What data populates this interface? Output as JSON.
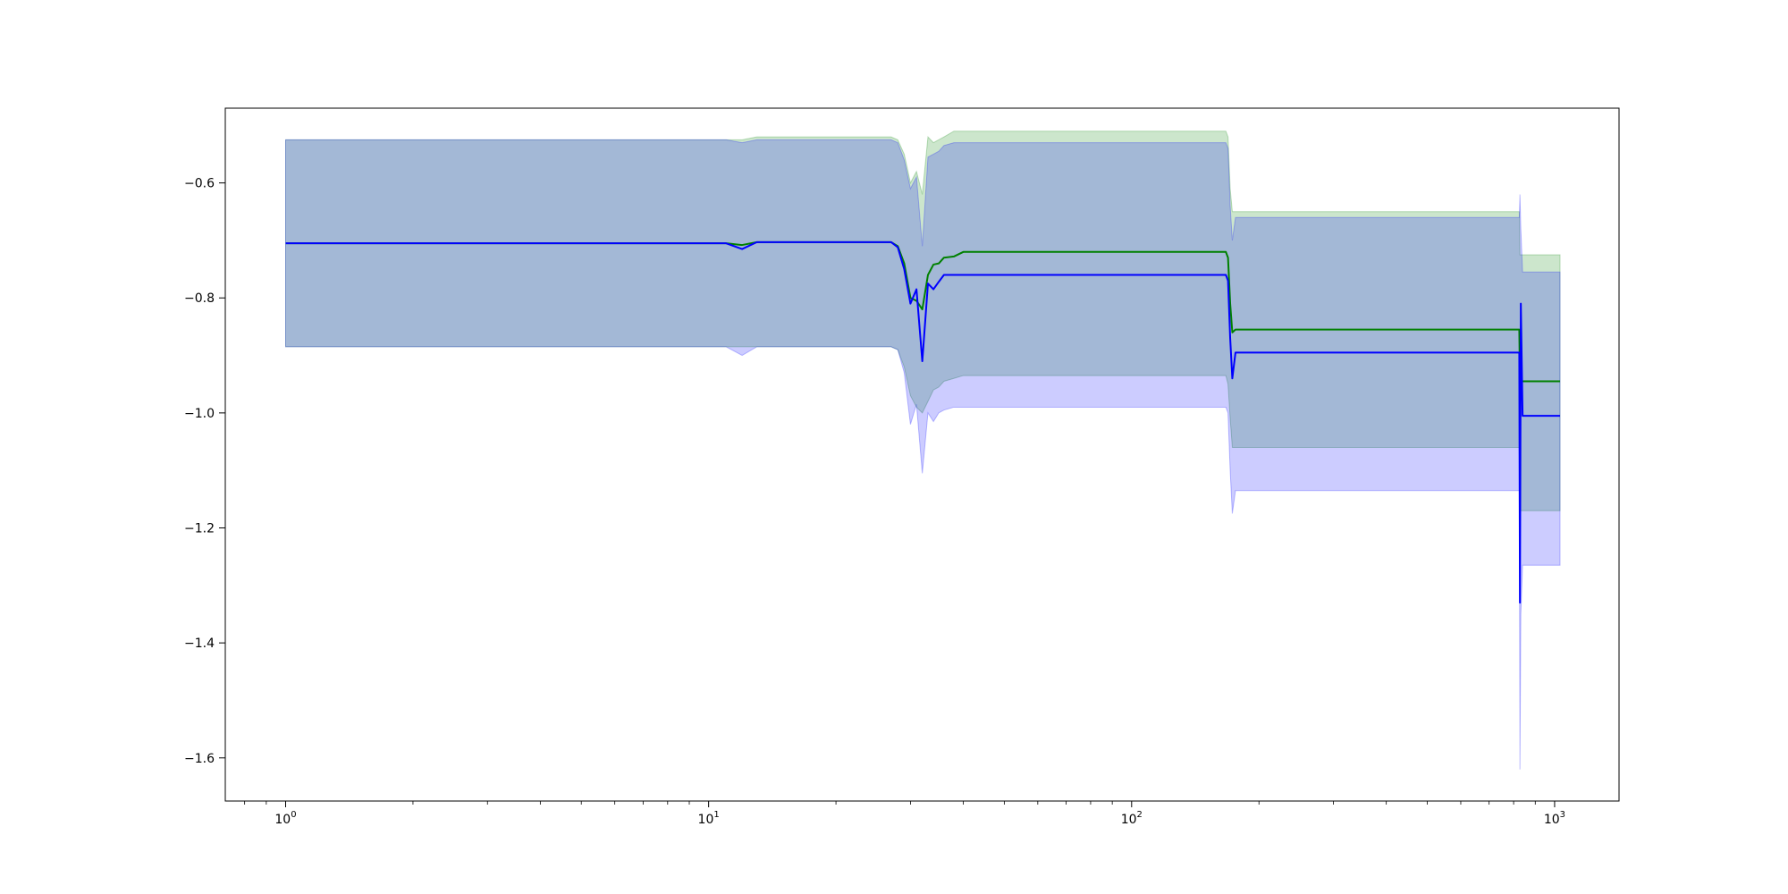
{
  "chart_data": {
    "type": "line",
    "title": "",
    "xlabel": "",
    "ylabel": "",
    "xscale": "log",
    "xlim": [
      0.72,
      1420
    ],
    "ylim": [
      -1.675,
      -0.47
    ],
    "grid": false,
    "x_ticks": [
      {
        "value": 1,
        "base": "10",
        "exp": "0"
      },
      {
        "value": 10,
        "base": "10",
        "exp": "1"
      },
      {
        "value": 100,
        "base": "10",
        "exp": "2"
      },
      {
        "value": 1000,
        "base": "10",
        "exp": "3"
      }
    ],
    "y_ticks": [
      {
        "value": -1.6,
        "label": "−1.6"
      },
      {
        "value": -1.4,
        "label": "−1.4"
      },
      {
        "value": -1.2,
        "label": "−1.2"
      },
      {
        "value": -1.0,
        "label": "−1.0"
      },
      {
        "value": -0.8,
        "label": "−0.8"
      },
      {
        "value": -0.6,
        "label": "−0.6"
      }
    ],
    "series": [
      {
        "color": "#008000",
        "band_color": "#008000",
        "band_opacity": 0.2,
        "x": [
          1,
          10,
          11,
          12,
          13,
          20,
          27,
          28,
          29,
          30,
          31,
          32,
          33,
          34,
          35,
          36,
          38,
          40,
          60,
          100,
          167,
          169,
          171,
          173,
          176,
          300,
          600,
          825,
          828,
          832,
          840,
          1030
        ],
        "y": [
          -0.705,
          -0.705,
          -0.705,
          -0.708,
          -0.703,
          -0.703,
          -0.703,
          -0.71,
          -0.74,
          -0.8,
          -0.805,
          -0.82,
          -0.76,
          -0.742,
          -0.74,
          -0.73,
          -0.728,
          -0.72,
          -0.72,
          -0.72,
          -0.72,
          -0.73,
          -0.81,
          -0.86,
          -0.855,
          -0.855,
          -0.855,
          -0.855,
          -0.945,
          -0.945,
          -0.945,
          -0.945
        ],
        "lower": [
          -0.885,
          -0.885,
          -0.885,
          -0.885,
          -0.885,
          -0.885,
          -0.885,
          -0.89,
          -0.92,
          -0.97,
          -0.99,
          -1.0,
          -0.98,
          -0.96,
          -0.955,
          -0.945,
          -0.94,
          -0.935,
          -0.935,
          -0.935,
          -0.935,
          -0.95,
          -1.01,
          -1.06,
          -1.06,
          -1.06,
          -1.06,
          -1.06,
          -1.17,
          -1.17,
          -1.17,
          -1.17
        ],
        "upper": [
          -0.525,
          -0.525,
          -0.525,
          -0.525,
          -0.52,
          -0.52,
          -0.52,
          -0.525,
          -0.55,
          -0.6,
          -0.58,
          -0.62,
          -0.52,
          -0.53,
          -0.525,
          -0.52,
          -0.51,
          -0.51,
          -0.51,
          -0.51,
          -0.51,
          -0.52,
          -0.61,
          -0.65,
          -0.65,
          -0.65,
          -0.65,
          -0.65,
          -0.725,
          -0.725,
          -0.725,
          -0.725
        ]
      },
      {
        "color": "#0000ff",
        "band_color": "#0000ff",
        "band_opacity": 0.2,
        "x": [
          1,
          10,
          11,
          12,
          13,
          20,
          27,
          28,
          29,
          30,
          31,
          32,
          33,
          34,
          35,
          36,
          38,
          40,
          60,
          100,
          167,
          169,
          171,
          173,
          176,
          300,
          600,
          825,
          828,
          832,
          840,
          1030
        ],
        "y": [
          -0.705,
          -0.705,
          -0.705,
          -0.715,
          -0.703,
          -0.703,
          -0.703,
          -0.712,
          -0.75,
          -0.81,
          -0.785,
          -0.91,
          -0.775,
          -0.785,
          -0.772,
          -0.76,
          -0.76,
          -0.76,
          -0.76,
          -0.76,
          -0.76,
          -0.77,
          -0.87,
          -0.94,
          -0.895,
          -0.895,
          -0.895,
          -0.895,
          -1.33,
          -0.81,
          -1.005,
          -1.005
        ],
        "lower": [
          -0.885,
          -0.885,
          -0.885,
          -0.9,
          -0.885,
          -0.885,
          -0.885,
          -0.89,
          -0.93,
          -1.02,
          -0.985,
          -1.105,
          -1.0,
          -1.015,
          -1.0,
          -0.995,
          -0.99,
          -0.99,
          -0.99,
          -0.99,
          -0.99,
          -1.0,
          -1.1,
          -1.175,
          -1.135,
          -1.135,
          -1.135,
          -1.135,
          -1.62,
          -1.35,
          -1.265,
          -1.265
        ],
        "upper": [
          -0.525,
          -0.525,
          -0.525,
          -0.53,
          -0.525,
          -0.525,
          -0.525,
          -0.53,
          -0.56,
          -0.61,
          -0.59,
          -0.71,
          -0.555,
          -0.55,
          -0.545,
          -0.535,
          -0.53,
          -0.53,
          -0.53,
          -0.53,
          -0.53,
          -0.54,
          -0.64,
          -0.7,
          -0.66,
          -0.66,
          -0.66,
          -0.66,
          -0.62,
          -0.68,
          -0.755,
          -0.755
        ]
      }
    ]
  }
}
